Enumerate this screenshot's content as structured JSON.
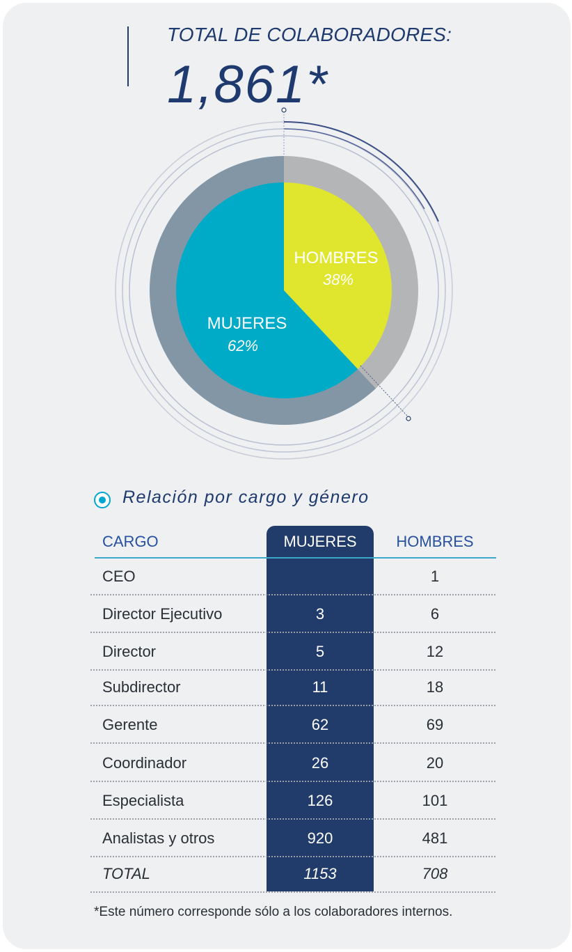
{
  "header": {
    "title": "TOTAL DE COLABORADORES:",
    "total": "1,861*"
  },
  "chart_data": {
    "type": "pie",
    "categories": [
      "MUJERES",
      "HOMBRES"
    ],
    "values": [
      62,
      38
    ],
    "labels": [
      "62%",
      "38%"
    ],
    "colors": {
      "MUJERES": "#00abc8",
      "HOMBRES": "#e0e52d",
      "ring_mujeres": "#8396a6",
      "ring_hombres": "#b3b5b7"
    }
  },
  "section": {
    "title": "Relación por cargo y género"
  },
  "table": {
    "columns": [
      "CARGO",
      "MUJERES",
      "HOMBRES"
    ],
    "rows": [
      {
        "cargo": "CEO",
        "mujeres": "",
        "hombres": "1"
      },
      {
        "cargo": "Director Ejecutivo",
        "mujeres": "3",
        "hombres": "6"
      },
      {
        "cargo": "Director",
        "mujeres": "5",
        "hombres": "12"
      },
      {
        "cargo": "Subdirector",
        "mujeres": "11",
        "hombres": "18"
      },
      {
        "cargo": "Gerente",
        "mujeres": "62",
        "hombres": "69"
      },
      {
        "cargo": "Coordinador",
        "mujeres": "26",
        "hombres": "20"
      },
      {
        "cargo": "Especialista",
        "mujeres": "126",
        "hombres": "101"
      },
      {
        "cargo": "Analistas y otros",
        "mujeres": "920",
        "hombres": "481"
      },
      {
        "cargo": "TOTAL",
        "mujeres": "1153",
        "hombres": "708"
      }
    ]
  },
  "footnote": "*Este número corresponde sólo a los colaboradores internos."
}
